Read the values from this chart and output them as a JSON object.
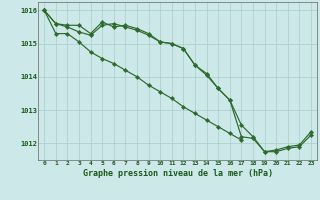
{
  "title": "Graphe pression niveau de la mer (hPa)",
  "hours": [
    0,
    1,
    2,
    3,
    4,
    5,
    6,
    7,
    8,
    9,
    10,
    11,
    12,
    13,
    14,
    15,
    16,
    17,
    18,
    19,
    20,
    21,
    22,
    23
  ],
  "line1": [
    1016.0,
    1015.6,
    1015.55,
    1015.55,
    1015.3,
    1015.65,
    1015.5,
    1015.55,
    1015.45,
    1015.3,
    1015.05,
    1015.0,
    1014.85,
    1014.35,
    1014.05,
    1013.65,
    1013.3,
    1012.55,
    1012.2,
    1011.75,
    1011.8,
    1011.9,
    1011.95,
    1012.35
  ],
  "line2": [
    1016.0,
    1015.6,
    1015.5,
    1015.35,
    1015.25,
    1015.55,
    1015.6,
    1015.5,
    1015.4,
    1015.25,
    1015.05,
    1015.0,
    1014.85,
    1014.35,
    1014.1,
    1013.65,
    1013.3,
    1012.2,
    1012.15,
    1011.75,
    1011.75,
    1011.85,
    1011.9,
    1012.25
  ],
  "line3_x": [
    0,
    1,
    2,
    3,
    4,
    5,
    6,
    7,
    8,
    9,
    10,
    11,
    12,
    13,
    14,
    15,
    16,
    17
  ],
  "line3": [
    1016.0,
    1015.3,
    1015.3,
    1015.05,
    1014.75,
    1014.55,
    1014.4,
    1014.2,
    1014.0,
    1013.75,
    1013.55,
    1013.35,
    1013.1,
    1012.9,
    1012.7,
    1012.5,
    1012.3,
    1012.1
  ],
  "ylim": [
    1011.5,
    1016.25
  ],
  "yticks": [
    1012,
    1013,
    1014,
    1015,
    1016
  ],
  "line_color": "#2d6a2d",
  "bg_color": "#cce8e8",
  "grid_color": "#aacccc",
  "title_color": "#1a5a1a"
}
